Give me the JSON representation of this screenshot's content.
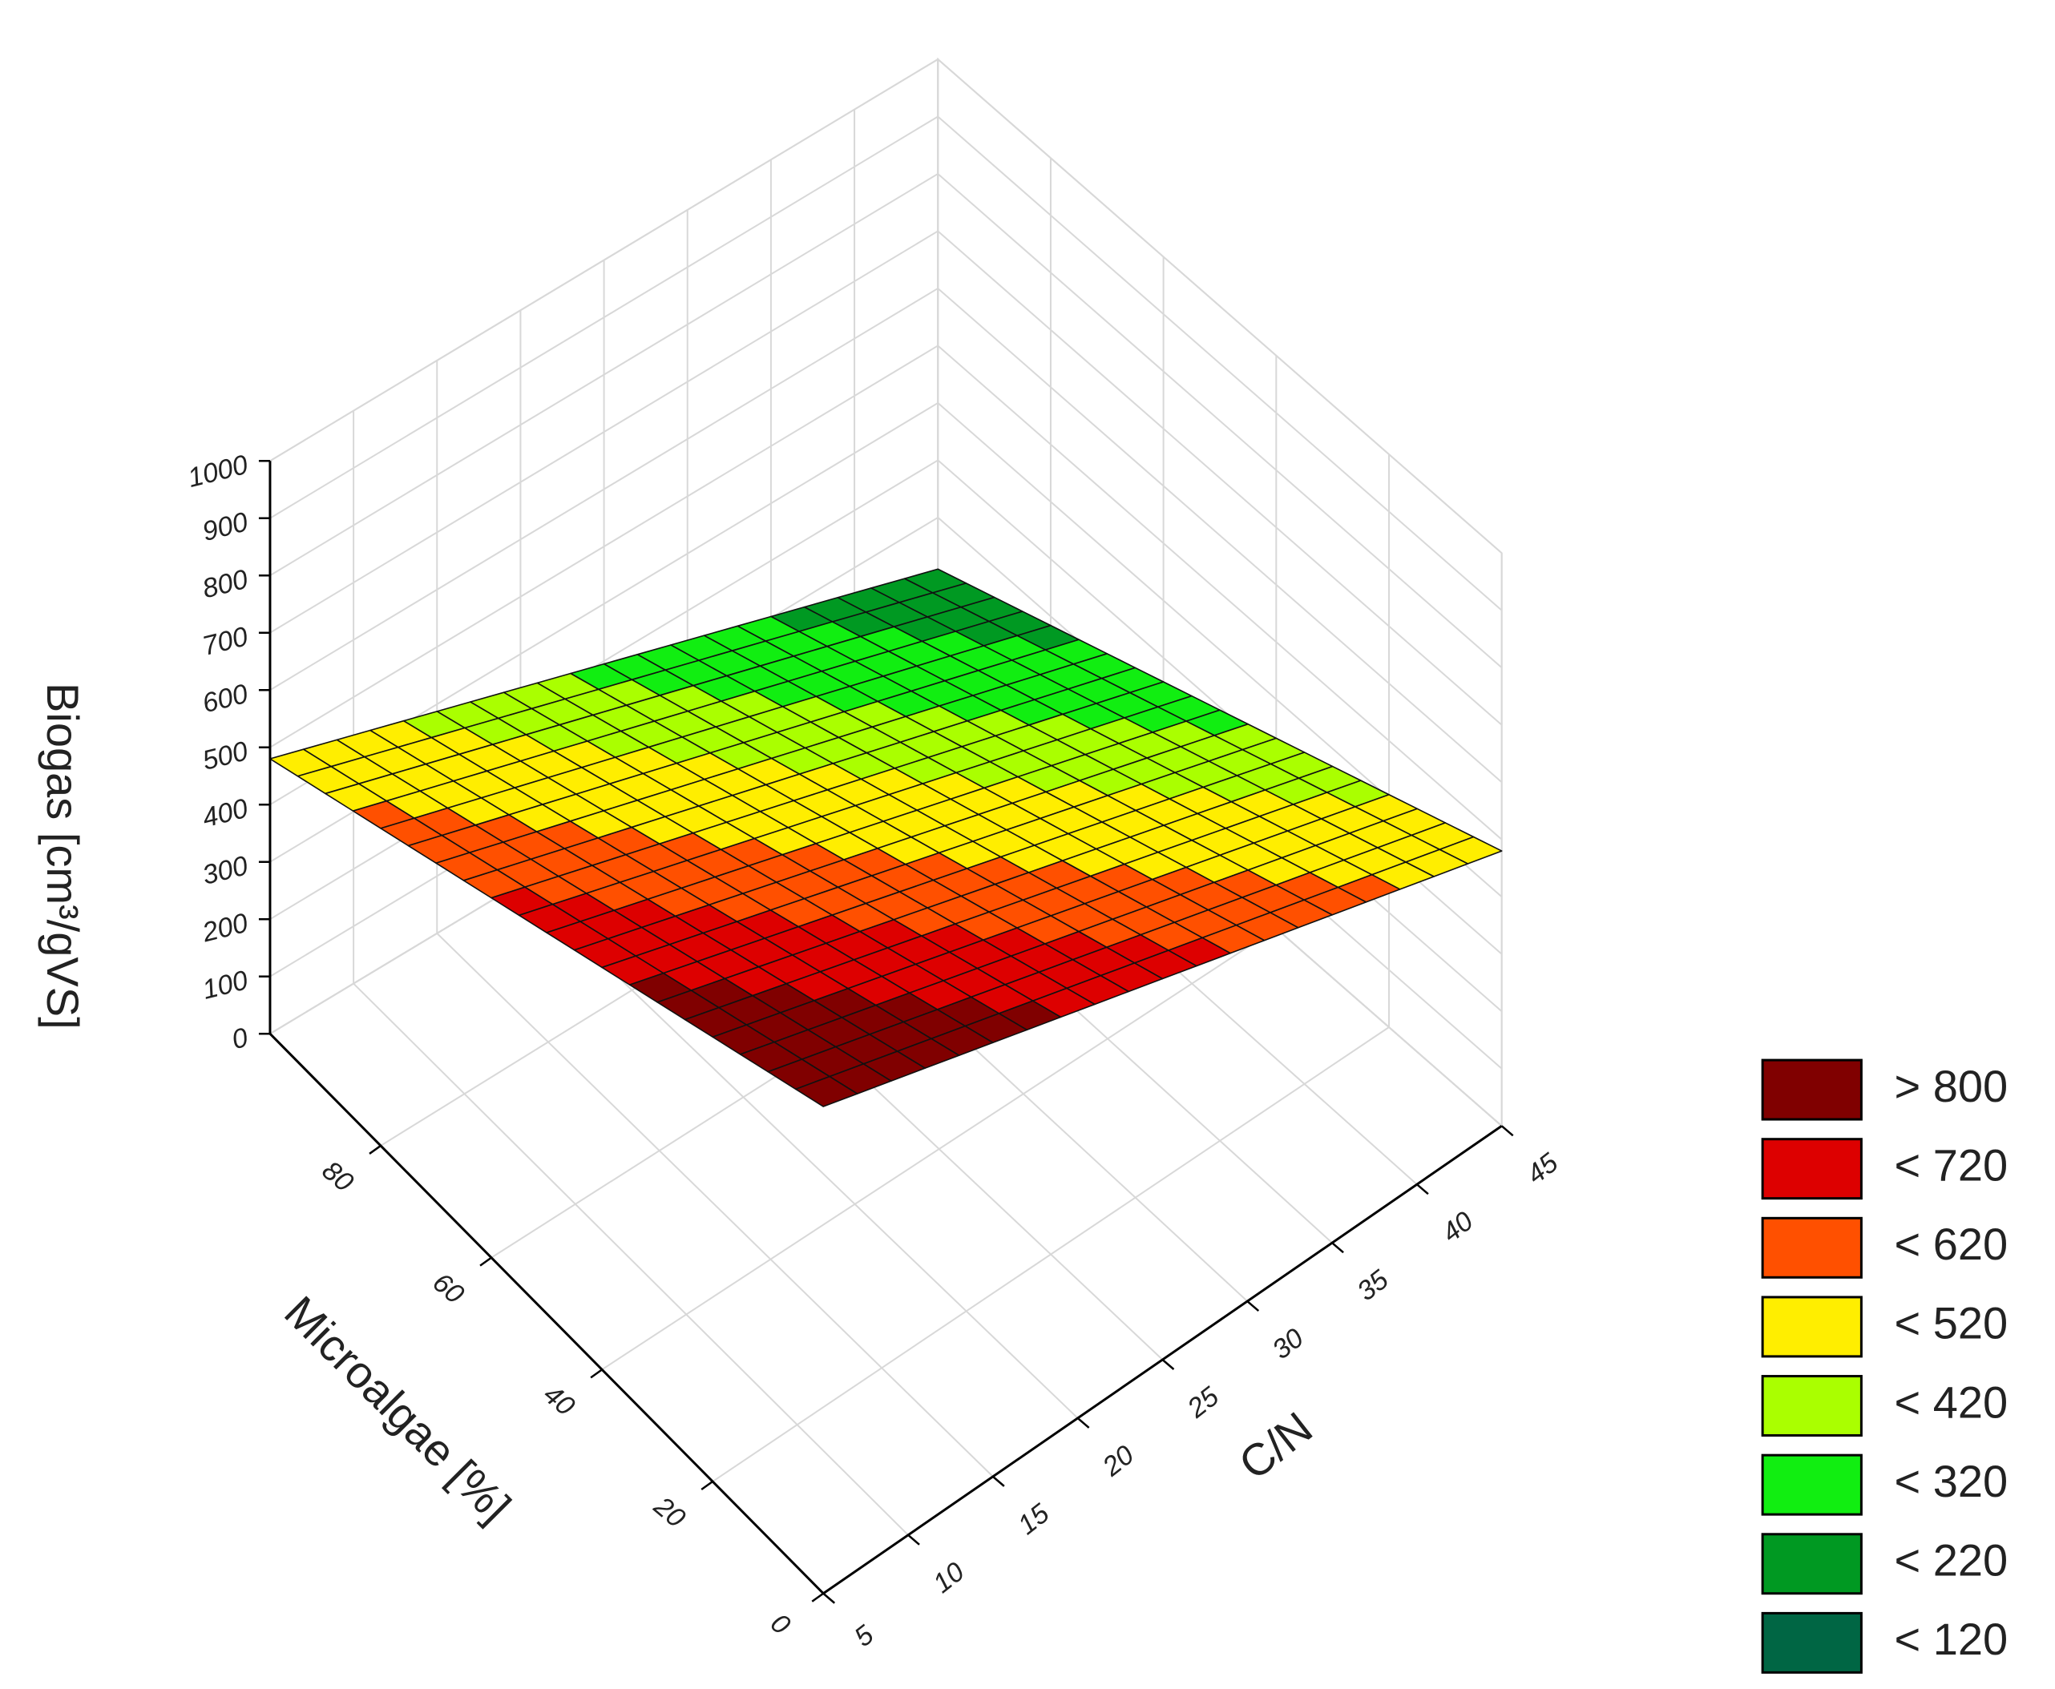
{
  "chart_data": {
    "type": "surface",
    "x_label": "C/N",
    "y_label": "Microalgae [%]",
    "z_label": "Biogas [cm³/gVS]",
    "x": [
      5,
      7,
      9,
      11,
      13,
      15,
      17,
      19,
      21,
      23,
      25,
      27,
      29,
      31,
      33,
      35,
      37,
      39,
      41,
      43,
      45
    ],
    "y": [
      0,
      5,
      10,
      15,
      20,
      25,
      30,
      35,
      40,
      45,
      50,
      55,
      60,
      65,
      70,
      75,
      80,
      85,
      90,
      95,
      100
    ],
    "z": [
      [
        850,
        831.5,
        813,
        794.5,
        776,
        757.5,
        739,
        720.5,
        702,
        683.5,
        665,
        646.5,
        628,
        609.5,
        591,
        572.5,
        554,
        535.5,
        517,
        498.5,
        480
      ],
      [
        831.5,
        813,
        794.5,
        776,
        757.5,
        739,
        720.5,
        702,
        683.5,
        665,
        646.5,
        628,
        609.5,
        591,
        572.5,
        554,
        535.5,
        517,
        498.5,
        480,
        461.5
      ],
      [
        813,
        794.5,
        776,
        757.5,
        739,
        720.5,
        702,
        683.5,
        665,
        646.5,
        628,
        609.5,
        591,
        572.5,
        554,
        535.5,
        517,
        498.5,
        480,
        461.5,
        443
      ],
      [
        794.5,
        776,
        757.5,
        739,
        720.5,
        702,
        683.5,
        665,
        646.5,
        628,
        609.5,
        591,
        572.5,
        554,
        535.5,
        517,
        498.5,
        480,
        461.5,
        443,
        424.5
      ],
      [
        776,
        757.5,
        739,
        720.5,
        702,
        683.5,
        665,
        646.5,
        628,
        609.5,
        591,
        572.5,
        554,
        535.5,
        517,
        498.5,
        480,
        461.5,
        443,
        424.5,
        406
      ],
      [
        757.5,
        739,
        720.5,
        702,
        683.5,
        665,
        646.5,
        628,
        609.5,
        591,
        572.5,
        554,
        535.5,
        517,
        498.5,
        480,
        461.5,
        443,
        424.5,
        406,
        387.5
      ],
      [
        739,
        720.5,
        702,
        683.5,
        665,
        646.5,
        628,
        609.5,
        591,
        572.5,
        554,
        535.5,
        517,
        498.5,
        480,
        461.5,
        443,
        424.5,
        406,
        387.5,
        369
      ],
      [
        720.5,
        702,
        683.5,
        665,
        646.5,
        628,
        609.5,
        591,
        572.5,
        554,
        535.5,
        517,
        498.5,
        480,
        461.5,
        443,
        424.5,
        406,
        387.5,
        369,
        350.5
      ],
      [
        702,
        683.5,
        665,
        646.5,
        628,
        609.5,
        591,
        572.5,
        554,
        535.5,
        517,
        498.5,
        480,
        461.5,
        443,
        424.5,
        406,
        387.5,
        369,
        350.5,
        332
      ],
      [
        683.5,
        665,
        646.5,
        628,
        609.5,
        591,
        572.5,
        554,
        535.5,
        517,
        498.5,
        480,
        461.5,
        443,
        424.5,
        406,
        387.5,
        369,
        350.5,
        332,
        313.5
      ],
      [
        665,
        646.5,
        628,
        609.5,
        591,
        572.5,
        554,
        535.5,
        517,
        498.5,
        480,
        461.5,
        443,
        424.5,
        406,
        387.5,
        369,
        350.5,
        332,
        313.5,
        295
      ],
      [
        646.5,
        628,
        609.5,
        591,
        572.5,
        554,
        535.5,
        517,
        498.5,
        480,
        461.5,
        443,
        424.5,
        406,
        387.5,
        369,
        350.5,
        332,
        313.5,
        295,
        276.5
      ],
      [
        628,
        609.5,
        591,
        572.5,
        554,
        535.5,
        517,
        498.5,
        480,
        461.5,
        443,
        424.5,
        406,
        387.5,
        369,
        350.5,
        332,
        313.5,
        295,
        276.5,
        258
      ],
      [
        609.5,
        591,
        572.5,
        554,
        535.5,
        517,
        498.5,
        480,
        461.5,
        443,
        424.5,
        406,
        387.5,
        369,
        350.5,
        332,
        313.5,
        295,
        276.5,
        258,
        239.5
      ],
      [
        591,
        572.5,
        554,
        535.5,
        517,
        498.5,
        480,
        461.5,
        443,
        424.5,
        406,
        387.5,
        369,
        350.5,
        332,
        313.5,
        295,
        276.5,
        258,
        239.5,
        221
      ],
      [
        572.5,
        554,
        535.5,
        517,
        498.5,
        480,
        461.5,
        443,
        424.5,
        406,
        387.5,
        369,
        350.5,
        332,
        313.5,
        295,
        276.5,
        258,
        239.5,
        221,
        202.5
      ],
      [
        554,
        535.5,
        517,
        498.5,
        480,
        461.5,
        443,
        424.5,
        406,
        387.5,
        369,
        350.5,
        332,
        313.5,
        295,
        276.5,
        258,
        239.5,
        221,
        202.5,
        184
      ],
      [
        535.5,
        517,
        498.5,
        480,
        461.5,
        443,
        424.5,
        406,
        387.5,
        369,
        350.5,
        332,
        313.5,
        295,
        276.5,
        258,
        239.5,
        221,
        202.5,
        184,
        165.5
      ],
      [
        517,
        498.5,
        480,
        461.5,
        443,
        424.5,
        406,
        387.5,
        369,
        350.5,
        332,
        313.5,
        295,
        276.5,
        258,
        239.5,
        221,
        202.5,
        184,
        165.5,
        147
      ],
      [
        498.5,
        480,
        461.5,
        443,
        424.5,
        406,
        387.5,
        369,
        350.5,
        332,
        313.5,
        295,
        276.5,
        258,
        239.5,
        221,
        202.5,
        184,
        165.5,
        147,
        128.5
      ],
      [
        480,
        461.5,
        443,
        424.5,
        406,
        387.5,
        369,
        350.5,
        332,
        313.5,
        295,
        276.5,
        258,
        239.5,
        221,
        202.5,
        184,
        165.5,
        147,
        128.5,
        110
      ]
    ],
    "xlim": [
      5,
      45
    ],
    "xticks": [
      5,
      10,
      15,
      20,
      25,
      30,
      35,
      40,
      45
    ],
    "ylim": [
      0,
      100
    ],
    "yticks": [
      0,
      20,
      40,
      60,
      80
    ],
    "zlim": [
      0,
      1000
    ],
    "zticks": [
      0,
      100,
      200,
      300,
      400,
      500,
      600,
      700,
      800,
      900,
      1000
    ],
    "grid": true,
    "levels": [
      {
        "value": 800,
        "label": "> 800",
        "color": "#800000"
      },
      {
        "value": 720,
        "label": "< 720",
        "color": "#dd0000"
      },
      {
        "value": 620,
        "label": "< 620",
        "color": "#ff5000"
      },
      {
        "value": 520,
        "label": "< 520",
        "color": "#ffee00"
      },
      {
        "value": 420,
        "label": "< 420",
        "color": "#aaff00"
      },
      {
        "value": 320,
        "label": "< 320",
        "color": "#11ee11"
      },
      {
        "value": 220,
        "label": "< 220",
        "color": "#009922"
      },
      {
        "value": 120,
        "label": "< 120",
        "color": "#006644"
      }
    ]
  }
}
